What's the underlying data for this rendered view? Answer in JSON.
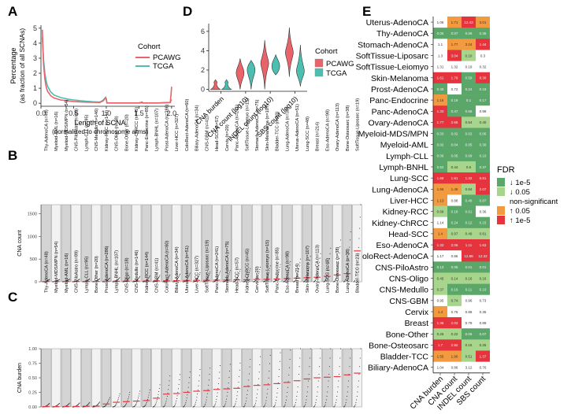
{
  "panel_labels": {
    "A": "A",
    "B": "B",
    "C": "C",
    "D": "D",
    "E": "E"
  },
  "colors": {
    "pcawg": "#E8636A",
    "tcga": "#4DBFB0",
    "median": "#E23A44",
    "panel_dark": "#D4D4D4",
    "panel_light": "#F2F2F2",
    "fdr_down_strong": "#5BA76A",
    "fdr_down": "#A8D58C",
    "fdr_ns": "#FFFFFF",
    "fdr_up": "#F29A40",
    "fdr_up_strong": "#E5343E"
  },
  "chart_data": [
    {
      "id": "A",
      "type": "line",
      "title": "",
      "xlabel": "Length of SCNA",
      "xlabel2": "(normalized to chromosome arms)",
      "ylabel": "Percentage",
      "ylabel2": "(as fraction of all SCNAs)",
      "xlim": [
        0,
        2.05
      ],
      "ylim": [
        -0.2,
        5.2
      ],
      "xticks": [
        0.0,
        0.5,
        1.0,
        1.5,
        2.0
      ],
      "xtick_labels": [
        "0.0",
        "0.5",
        "1.0",
        "1.5",
        "2.0"
      ],
      "yticks": [
        0,
        1,
        2,
        3,
        4,
        5
      ],
      "yticks_labels": [
        "0",
        "1",
        "2",
        "3",
        "4",
        "5"
      ],
      "legend_title": "Cohort",
      "legend_position": "right",
      "series": [
        {
          "name": "PCAWG",
          "color": "#E8636A",
          "x": [
            0.02,
            0.04,
            0.06,
            0.08,
            0.1,
            0.15,
            0.2,
            0.3,
            0.4,
            0.5,
            0.6,
            0.7,
            0.8,
            0.9,
            0.95,
            0.99,
            1.0,
            1.01,
            1.2,
            1.5,
            1.55,
            1.56,
            1.8,
            1.98,
            1.99,
            2.0
          ],
          "y": [
            4.9,
            2.6,
            1.6,
            1.1,
            0.8,
            0.5,
            0.35,
            0.22,
            0.16,
            0.12,
            0.09,
            0.07,
            0.06,
            0.05,
            0.15,
            0.35,
            0.3,
            0.02,
            0.02,
            0.02,
            0.08,
            0.02,
            0.02,
            0.05,
            0.5,
            1.1
          ]
        },
        {
          "name": "TCGA",
          "color": "#4DBFB0",
          "x": [
            0.02,
            0.04,
            0.06,
            0.08,
            0.1,
            0.15,
            0.2,
            0.3,
            0.4,
            0.5,
            0.6,
            0.7,
            0.8,
            0.9,
            0.95,
            0.99,
            1.0,
            1.01,
            1.2,
            1.5,
            1.8,
            1.98,
            1.99,
            2.0
          ],
          "y": [
            4.4,
            2.9,
            2.0,
            1.5,
            1.15,
            0.75,
            0.55,
            0.38,
            0.28,
            0.22,
            0.17,
            0.13,
            0.1,
            0.08,
            0.2,
            0.4,
            0.3,
            0.02,
            0.02,
            0.02,
            0.02,
            0.05,
            0.15,
            0.25
          ]
        }
      ]
    },
    {
      "id": "D",
      "type": "violin",
      "categories": [
        "CNA burden",
        "CNA count (log10)",
        "INDEL count (log10)",
        "SBS count (log10)"
      ],
      "ylim": [
        -0.2,
        6.8
      ],
      "yticks": [
        0,
        2,
        4,
        6
      ],
      "ytick_labels": [
        "0",
        "2",
        "4",
        "6"
      ],
      "legend_title": "Cohort",
      "legend_position": "right",
      "series": [
        {
          "name": "PCAWG",
          "color": "#E8636A",
          "min": [
            0,
            0,
            0,
            1.3
          ],
          "max": [
            1,
            3.2,
            5.1,
            6.4
          ],
          "mode": [
            0.2,
            1.7,
            2.7,
            3.8
          ]
        },
        {
          "name": "TCGA",
          "color": "#4DBFB0",
          "min": [
            0,
            0,
            1.5,
            0.3
          ],
          "max": [
            1,
            3.0,
            3.6,
            4.6
          ],
          "mode": [
            0.2,
            2.0,
            2.4,
            1.9
          ]
        }
      ]
    },
    {
      "id": "B",
      "type": "scatter",
      "ylabel": "CNA count",
      "ylim": [
        0,
        1700
      ],
      "yticks": [
        0,
        500,
        1000,
        1500
      ],
      "ytick_labels": [
        "0",
        "500",
        "1000",
        "1500"
      ],
      "categories": [
        "Thy-AdenoCA (n=48)",
        "Myeloid-AML (n=16)",
        "Myeloid-MDS/MPN (n=54)",
        "CNS-PiloAstro (n=89)",
        "Lymph-CLL (n=95)",
        "CNS-Medullo (n=146)",
        "Kidney-RCC (n=144)",
        "CNS-Oligo (n=18)",
        "Bone-Other (n=20)",
        "Kidney-ChRCC (n=45)",
        "Panc-Endocrine (n=85)",
        "Lymph-BNHL (n=107)",
        "Prost-AdenoCA (n=286)",
        "Liver-HCC (n=327)",
        "ColoRect-AdenoCA (n=60)",
        "Biliary-AdenoCA (n=34)",
        "CNS-GBM (n=41)",
        "Head-SCC (n=57)",
        "Cervix (n=20)",
        "Panc-AdenoCA (n=241)",
        "SoftTissue-Leiomyo (n=15)",
        "Stomach-AdenoCA (n=75)",
        "Skin-Melanoma (n=107)",
        "Bladder-TCC (n=23)",
        "Lung-AdenoCA (n=38)",
        "Uterus-AdenoCA (n=51)",
        "Lung-SCC (n=48)",
        "Breast (n=214)",
        "Eso-AdenoCA (n=98)",
        "Ovary-AdenoCA (n=113)",
        "Bone-Osteosarc (n=38)",
        "SoftTissue-Liposarc (n=19)"
      ],
      "medians": [
        5,
        5,
        6,
        6,
        7,
        8,
        10,
        12,
        14,
        16,
        18,
        20,
        22,
        25,
        28,
        30,
        32,
        35,
        38,
        42,
        45,
        50,
        55,
        60,
        70,
        80,
        90,
        100,
        120,
        150,
        180,
        680
      ]
    },
    {
      "id": "C",
      "type": "scatter",
      "ylabel": "CNA burden",
      "ylim": [
        0,
        1.0
      ],
      "yticks": [
        0,
        0.25,
        0.5,
        0.75,
        1.0
      ],
      "ytick_labels": [
        "0.00",
        "0.25",
        "0.50",
        "0.75",
        "1.00"
      ],
      "categories": [
        "Thy-AdenoCA (n=48)",
        "Myeloid-MDS/MPN (n=54)",
        "Myeloid-AML (n=16)",
        "CNS-PiloAstro (n=89)",
        "Lymph-CLL (n=95)",
        "Bone-Other (n=20)",
        "Prost-AdenoCA (n=286)",
        "Lymph-BNHL (n=107)",
        "CNS-Oligo (n=18)",
        "CNS-Medullo (n=146)",
        "Kidney-RCC (n=144)",
        "CNS-GBM (n=41)",
        "ColoRect-AdenoCA (n=60)",
        "Biliary-AdenoCA (n=34)",
        "Uterus-AdenoCA (n=51)",
        "Liver-HCC (n=327)",
        "SoftTissue-Liposarc (n=19)",
        "Panc-AdenoCA (n=241)",
        "Stomach-AdenoCA (n=75)",
        "Head-SCC (n=57)",
        "Kidney-ChRCC (n=45)",
        "Cervix (n=20)",
        "SoftTissue-Leiomyo (n=15)",
        "Panc-Endocrine (n=85)",
        "Eso-AdenoCA (n=98)",
        "Breast (n=214)",
        "Skin-Melanoma (n=107)",
        "Ovary-AdenoCA (n=113)",
        "Lung-SCC (n=48)",
        "Bone-Osteosarc (n=38)",
        "Lung-AdenoCA (n=38)",
        "Bladder-TCC (n=23)"
      ],
      "medians": [
        0.005,
        0.006,
        0.007,
        0.008,
        0.012,
        0.015,
        0.05,
        0.08,
        0.09,
        0.1,
        0.11,
        0.15,
        0.22,
        0.23,
        0.25,
        0.27,
        0.28,
        0.3,
        0.31,
        0.32,
        0.35,
        0.37,
        0.38,
        0.4,
        0.42,
        0.45,
        0.48,
        0.5,
        0.51,
        0.52,
        0.55,
        0.58
      ]
    },
    {
      "id": "E",
      "type": "heatmap",
      "columns": [
        "CNA burden",
        "CNA count",
        "INDEL count",
        "SBS count"
      ],
      "legend_title": "FDR",
      "legend_position": "right",
      "legend": [
        {
          "key": "down_strong",
          "label": "↓ 1e-5"
        },
        {
          "key": "down",
          "label": "↓ 0.05"
        },
        {
          "key": "ns",
          "label": "non-significant"
        },
        {
          "key": "up",
          "label": "↑ 0.05"
        },
        {
          "key": "up_strong",
          "label": "↑ 1e-5"
        }
      ],
      "rows": [
        {
          "label": "Uterus-AdenoCA",
          "values": [
            "1.06",
            "1.71",
            "12.43",
            "3.01"
          ],
          "cats": [
            "ns",
            "up",
            "up_strong",
            "up"
          ]
        },
        {
          "label": "Thy-AdenoCA",
          "values": [
            "0.05",
            "0.07",
            "0.06",
            "0.36"
          ],
          "cats": [
            "down_strong",
            "down_strong",
            "down_strong",
            "down_strong"
          ]
        },
        {
          "label": "Stomach-AdenoCA",
          "values": [
            "1.1",
            "1.77",
            "3.24",
            "1.44"
          ],
          "cats": [
            "ns",
            "up",
            "up",
            "up_strong"
          ]
        },
        {
          "label": "SoftTissue-Liposarc",
          "values": [
            "1.3",
            "3.04",
            "0.10",
            "0.3"
          ],
          "cats": [
            "ns",
            "up_strong",
            "down",
            "ns"
          ]
        },
        {
          "label": "SoftTissue-Leiomyo",
          "values": [
            "1.31",
            "1.32",
            "0.19",
            "0.32"
          ],
          "cats": [
            "ns",
            "ns",
            "ns",
            "ns"
          ]
        },
        {
          "label": "Skin-Melanoma",
          "values": [
            "1.61",
            "1.79",
            "0.59",
            "8.30"
          ],
          "cats": [
            "up_strong",
            "up_strong",
            "down_strong",
            "up_strong"
          ]
        },
        {
          "label": "Prost-AdenoCA",
          "values": [
            "0.45",
            "0.72",
            "0.24",
            "0.19"
          ],
          "cats": [
            "down_strong",
            "ns",
            "down_strong",
            "down_strong"
          ]
        },
        {
          "label": "Panc-Endocrine",
          "values": [
            "1.16",
            "0.19",
            "0.1",
            "0.17"
          ],
          "cats": [
            "up",
            "down_strong",
            "down_strong",
            "down_strong"
          ]
        },
        {
          "label": "Panc-AdenoCA",
          "values": [
            "1.33",
            "0.47",
            "0.66",
            "0.98"
          ],
          "cats": [
            "up_strong",
            "down_strong",
            "down_strong",
            "ns"
          ]
        },
        {
          "label": "Ovary-AdenoCA",
          "values": [
            "1.77",
            "2.66",
            "0.54",
            "0.40"
          ],
          "cats": [
            "up_strong",
            "up_strong",
            "down",
            "down"
          ]
        },
        {
          "label": "Myeloid-MDS/MPN",
          "values": [
            "0.03",
            "0.02",
            "0.02",
            "0.06"
          ],
          "cats": [
            "down_strong",
            "down_strong",
            "down_strong",
            "down_strong"
          ]
        },
        {
          "label": "Myeloid-AML",
          "values": [
            "0.02",
            "0.04",
            "0.05",
            "0.30"
          ],
          "cats": [
            "down_strong",
            "down_strong",
            "down_strong",
            "down_strong"
          ]
        },
        {
          "label": "Lymph-CLL",
          "values": [
            "0.06",
            "0.05",
            "0.09",
            "0.10"
          ],
          "cats": [
            "down_strong",
            "down_strong",
            "down_strong",
            "down_strong"
          ]
        },
        {
          "label": "Lymph-BNHL",
          "values": [
            "0.52",
            "0.44",
            "0.6",
            "0.37"
          ],
          "cats": [
            "down_strong",
            "down",
            "down",
            "down_strong"
          ]
        },
        {
          "label": "Lung-SCC",
          "values": [
            "1.68",
            "1.81",
            "1.32",
            "6.81"
          ],
          "cats": [
            "up_strong",
            "up_strong",
            "up_strong",
            "up_strong"
          ]
        },
        {
          "label": "Lung-AdenoCA",
          "values": [
            "1.56",
            "1.46",
            "0.84",
            "2.07"
          ],
          "cats": [
            "up",
            "up",
            "down",
            "up_strong"
          ]
        },
        {
          "label": "Liver-HCC",
          "values": [
            "1.13",
            "0.88",
            "0.48",
            "0.87"
          ],
          "cats": [
            "up",
            "ns",
            "down_strong",
            "down_strong"
          ]
        },
        {
          "label": "Kidney-RCC",
          "values": [
            "0.68",
            "0.18",
            "0.61",
            "0.36"
          ],
          "cats": [
            "down",
            "down_strong",
            "down_strong",
            "ns"
          ]
        },
        {
          "label": "Kidney-ChRCC",
          "values": [
            "1.14",
            "0.24",
            "0.12",
            "0.15"
          ],
          "cats": [
            "ns",
            "down_strong",
            "down_strong",
            "down_strong"
          ]
        },
        {
          "label": "Head-SCC",
          "values": [
            "1.4",
            "0.97",
            "0.49",
            "0.81"
          ],
          "cats": [
            "up",
            "down",
            "down",
            "down"
          ]
        },
        {
          "label": "Eso-AdenoCA",
          "values": [
            "1.33",
            "2.06",
            "1.11",
            "1.63"
          ],
          "cats": [
            "up_strong",
            "up_strong",
            "up_strong",
            "up_strong"
          ]
        },
        {
          "label": "ColoRect-AdenoCA",
          "values": [
            "1.17",
            "0.86",
            "12.88",
            "12.32"
          ],
          "cats": [
            "ns",
            "ns",
            "up_strong",
            "up_strong"
          ]
        },
        {
          "label": "CNS-PiloAstro",
          "values": [
            "0.13",
            "0.05",
            "0.01",
            "0.01"
          ],
          "cats": [
            "down_strong",
            "down_strong",
            "down_strong",
            "down_strong"
          ]
        },
        {
          "label": "CNS-Oligo",
          "values": [
            "0.45",
            "0.14",
            "0.16",
            "0.16"
          ],
          "cats": [
            "down",
            "down",
            "down",
            "down"
          ]
        },
        {
          "label": "CNS-Medullo",
          "values": [
            "0.37",
            "0.16",
            "0.11",
            "0.10"
          ],
          "cats": [
            "down",
            "down_strong",
            "down_strong",
            "down_strong"
          ]
        },
        {
          "label": "CNS-GBM",
          "values": [
            "0.95",
            "0.74",
            "0.96",
            "0.73"
          ],
          "cats": [
            "ns",
            "down",
            "ns",
            "ns"
          ]
        },
        {
          "label": "Cervix",
          "values": [
            "1.4",
            "0.76",
            "0.86",
            "0.35"
          ],
          "cats": [
            "up",
            "ns",
            "ns",
            "ns"
          ]
        },
        {
          "label": "Breast",
          "values": [
            "1.36",
            "2.03",
            "0.79",
            "0.89"
          ],
          "cats": [
            "up_strong",
            "up_strong",
            "ns",
            "ns"
          ]
        },
        {
          "label": "Bone-Other",
          "values": [
            "0.26",
            "0.22",
            "0.06",
            "0.07"
          ],
          "cats": [
            "down",
            "down",
            "down_strong",
            "down_strong"
          ]
        },
        {
          "label": "Bone-Osteosarc",
          "values": [
            "1.7",
            "2.82",
            "0.15",
            "0.25"
          ],
          "cats": [
            "up_strong",
            "up_strong",
            "down",
            "down"
          ]
        },
        {
          "label": "Bladder-TCC",
          "values": [
            "1.55",
            "1.90",
            "0.51",
            "1.37"
          ],
          "cats": [
            "up",
            "up",
            "down",
            "up_strong"
          ]
        },
        {
          "label": "Biliary-AdenoCA",
          "values": [
            "1.04",
            "0.86",
            "3.12",
            "0.76"
          ],
          "cats": [
            "ns",
            "ns",
            "ns",
            "ns"
          ]
        }
      ]
    }
  ]
}
